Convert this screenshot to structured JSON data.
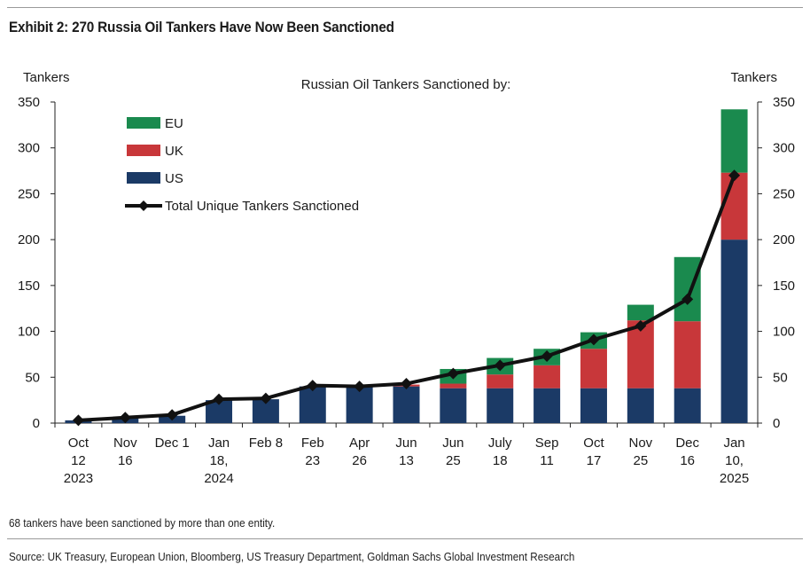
{
  "title": "Exhibit 2: 270 Russia Oil Tankers Have Now Been Sanctioned",
  "footnote": "68 tankers have been sanctioned by more than one entity.",
  "source": "Source: UK Treasury, European Union, Bloomberg, US Treasury Department, Goldman Sachs Global Investment Research",
  "chart_data": {
    "type": "bar",
    "stacked": true,
    "title": "Russian Oil Tankers Sanctioned by:",
    "ylabel_left": "Tankers",
    "ylabel_right": "Tankers",
    "ylim": [
      0,
      350
    ],
    "yticks": [
      0,
      50,
      100,
      150,
      200,
      250,
      300,
      350
    ],
    "legend_placement": "top-left",
    "grid": false,
    "categories": [
      [
        "Oct",
        "12",
        "2023"
      ],
      [
        "Nov",
        "16"
      ],
      [
        "Dec 1"
      ],
      [
        "Jan",
        "18,",
        "2024"
      ],
      [
        "Feb 8"
      ],
      [
        "Feb",
        "23"
      ],
      [
        "Apr",
        "26"
      ],
      [
        "Jun",
        "13"
      ],
      [
        "Jun",
        "25"
      ],
      [
        "July",
        "18"
      ],
      [
        "Sep",
        "11"
      ],
      [
        "Oct",
        "17"
      ],
      [
        "Nov",
        "25"
      ],
      [
        "Dec",
        "16"
      ],
      [
        "Jan",
        "10,",
        "2025"
      ]
    ],
    "series": [
      {
        "name": "US",
        "color": "#1b3a66",
        "values": [
          3,
          5,
          8,
          25,
          26,
          40,
          40,
          40,
          38,
          38,
          38,
          38,
          38,
          38,
          200
        ]
      },
      {
        "name": "UK",
        "color": "#c8373a",
        "values": [
          0,
          0,
          0,
          0,
          0,
          0,
          0,
          2,
          5,
          15,
          25,
          43,
          74,
          73,
          73
        ]
      },
      {
        "name": "EU",
        "color": "#1a8a4e",
        "values": [
          0,
          0,
          0,
          0,
          0,
          0,
          0,
          0,
          16,
          18,
          18,
          18,
          17,
          70,
          69
        ]
      },
      {
        "name": "Total Unique Tankers Sanctioned",
        "type": "line",
        "color": "#111111",
        "values": [
          3,
          6,
          9,
          26,
          27,
          41,
          40,
          43,
          54,
          63,
          73,
          91,
          106,
          135,
          270
        ]
      }
    ]
  }
}
